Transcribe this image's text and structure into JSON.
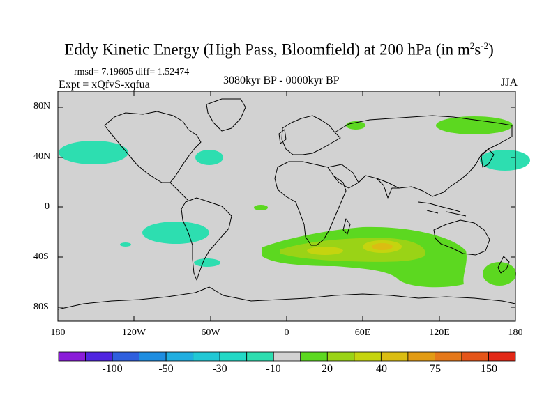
{
  "title": {
    "main": "Eddy Kinetic Energy (High Pass, Bloomfield) at 200 hPa (in m",
    "exp1": "2",
    "mid": "s",
    "exp2": "-2",
    "close": ")"
  },
  "stats_text": "rmsd= 7.19605  diff= 1.52474",
  "expt_text": "Expt = xQfvS-xqfua",
  "period_text": "3080kyr BP - 0000kyr BP",
  "season_text": "JJA",
  "lat_labels": [
    "80N",
    "40N",
    "0",
    "40S",
    "80S"
  ],
  "lon_labels": [
    "180",
    "120W",
    "60W",
    "0",
    "60E",
    "120E",
    "180"
  ],
  "colorbar": {
    "labels": [
      "-100",
      "-50",
      "-30",
      "-10",
      "20",
      "40",
      "75",
      "150"
    ],
    "colors": [
      "#8a1bd8",
      "#5025e0",
      "#2f5fde",
      "#1e8de0",
      "#20aee0",
      "#21c8d5",
      "#22d9c6",
      "#2ddeb0",
      "#d2d2d2",
      "#5cd820",
      "#9ad316",
      "#c5d40f",
      "#dbbd12",
      "#e29b14",
      "#e5781a",
      "#e45519",
      "#e22816"
    ]
  },
  "map_colors": {
    "background": "#d2d2d2",
    "land_outline": "#000000",
    "positive_light": "#5cd820",
    "positive_mid": "#9ad316",
    "positive_high": "#c5d40f",
    "positive_peak": "#dbbd12",
    "negative": "#2ddeb0"
  }
}
